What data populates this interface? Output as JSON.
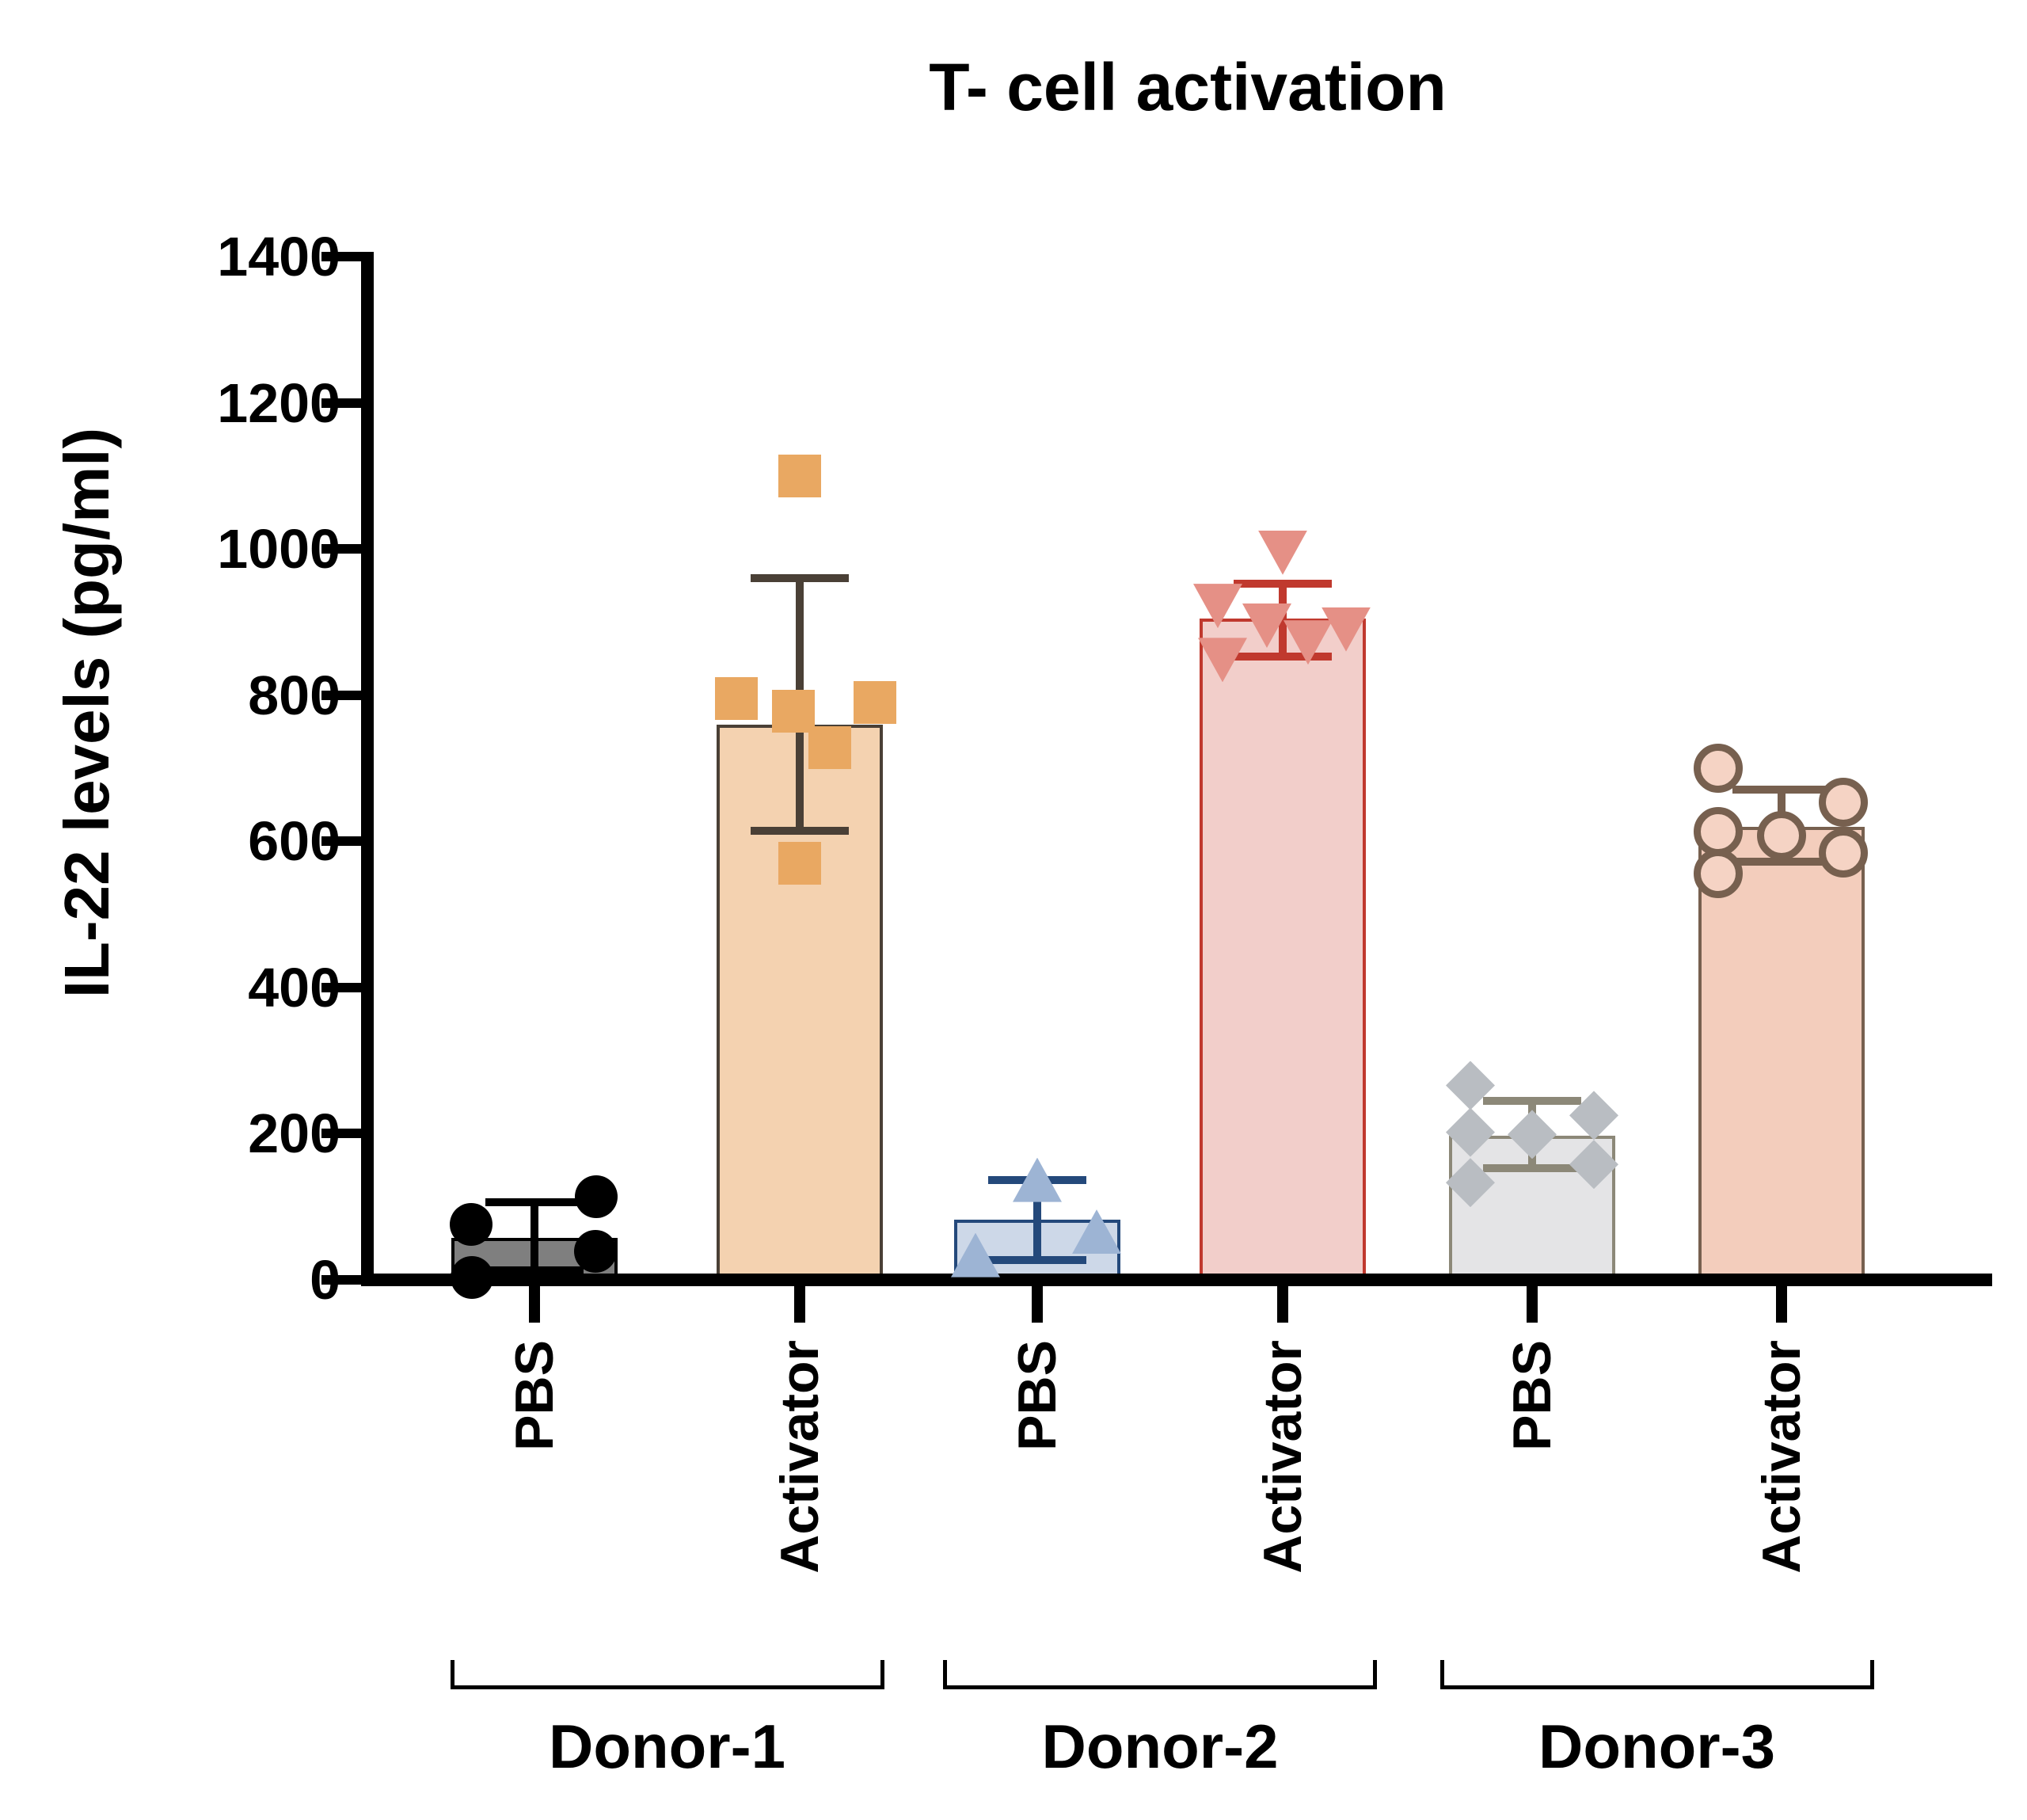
{
  "title": "T- cell activation",
  "y_axis": {
    "label": "IL-22 levels (pg/ml)",
    "tick_labels": [
      "0",
      "200",
      "400",
      "600",
      "800",
      "1000",
      "1200",
      "1400"
    ]
  },
  "chart_data": {
    "type": "bar",
    "title": "T- cell activation",
    "xlabel": "",
    "ylabel": "IL-22 levels (pg/ml)",
    "ylim": [
      0,
      1400
    ],
    "yticks": [
      0,
      200,
      400,
      600,
      800,
      1000,
      1200,
      1400
    ],
    "grid": false,
    "legend": false,
    "groups": [
      "Donor-1",
      "Donor-2",
      "Donor-3"
    ],
    "conditions": [
      "PBS",
      "Activator"
    ],
    "bars": [
      {
        "donor": "Donor-1",
        "condition": "PBS",
        "mean": 57,
        "err_low": 13,
        "err_high": 106,
        "marker": "circle",
        "bar_fill": "#7F7F7F",
        "bar_outline": "#000000",
        "marker_color": "#000000",
        "error_color": "#000000",
        "points": [
          {
            "dx": -80,
            "value": 76
          },
          {
            "dx": 78,
            "value": 114
          },
          {
            "dx": 77,
            "value": 39
          },
          {
            "dx": -79,
            "value": 3
          }
        ]
      },
      {
        "donor": "Donor-1",
        "condition": "Activator",
        "mean": 760,
        "err_low": 614,
        "err_high": 960,
        "marker": "square",
        "bar_fill": "#F4D2B0",
        "bar_outline": "#4A4036",
        "marker_color": "#E9A862",
        "error_color": "#4A4036",
        "points": [
          {
            "dx": 0,
            "value": 1100
          },
          {
            "dx": -80,
            "value": 795
          },
          {
            "dx": -8,
            "value": 778
          },
          {
            "dx": 95,
            "value": 790
          },
          {
            "dx": 38,
            "value": 728
          },
          {
            "dx": 0,
            "value": 570
          }
        ]
      },
      {
        "donor": "Donor-2",
        "condition": "PBS",
        "mean": 82,
        "err_low": 27,
        "err_high": 137,
        "marker": "triangle-up",
        "bar_fill": "#CDD8E8",
        "bar_outline": "#24497B",
        "marker_color": "#9DB4D4",
        "error_color": "#24497B",
        "points": [
          {
            "dx": 0,
            "value": 137
          },
          {
            "dx": 75,
            "value": 66
          },
          {
            "dx": -78,
            "value": 34
          }
        ]
      },
      {
        "donor": "Donor-2",
        "condition": "Activator",
        "mean": 905,
        "err_low": 853,
        "err_high": 952,
        "marker": "triangle-down",
        "bar_fill": "#F2CECA",
        "bar_outline": "#C0392E",
        "marker_color": "#E59086",
        "error_color": "#C0392E",
        "points": [
          {
            "dx": 0,
            "value": 995
          },
          {
            "dx": -82,
            "value": 922
          },
          {
            "dx": -20,
            "value": 895
          },
          {
            "dx": 32,
            "value": 872
          },
          {
            "dx": 80,
            "value": 890
          },
          {
            "dx": -76,
            "value": 848
          }
        ]
      },
      {
        "donor": "Donor-3",
        "condition": "PBS",
        "mean": 197,
        "err_low": 153,
        "err_high": 245,
        "marker": "diamond",
        "bar_fill": "#E4E4E6",
        "bar_outline": "#8C8878",
        "marker_color": "#B9BDC2",
        "error_color": "#8C8878",
        "points": [
          {
            "dx": -78,
            "value": 266
          },
          {
            "dx": -78,
            "value": 202
          },
          {
            "dx": 0,
            "value": 199
          },
          {
            "dx": 78,
            "value": 225
          },
          {
            "dx": 78,
            "value": 158
          },
          {
            "dx": -78,
            "value": 133
          }
        ]
      },
      {
        "donor": "Donor-3",
        "condition": "Activator",
        "mean": 620,
        "err_low": 572,
        "err_high": 671,
        "marker": "ring",
        "bar_fill": "#F3CDBC",
        "bar_outline": "#77604F",
        "marker_color": "#77604F",
        "marker_fill": "#F5D3C4",
        "error_color": "#77604F",
        "points": [
          {
            "dx": -80,
            "value": 700
          },
          {
            "dx": -80,
            "value": 613
          },
          {
            "dx": -80,
            "value": 556
          },
          {
            "dx": 0,
            "value": 608
          },
          {
            "dx": 78,
            "value": 653
          },
          {
            "dx": 78,
            "value": 584
          }
        ]
      }
    ]
  }
}
